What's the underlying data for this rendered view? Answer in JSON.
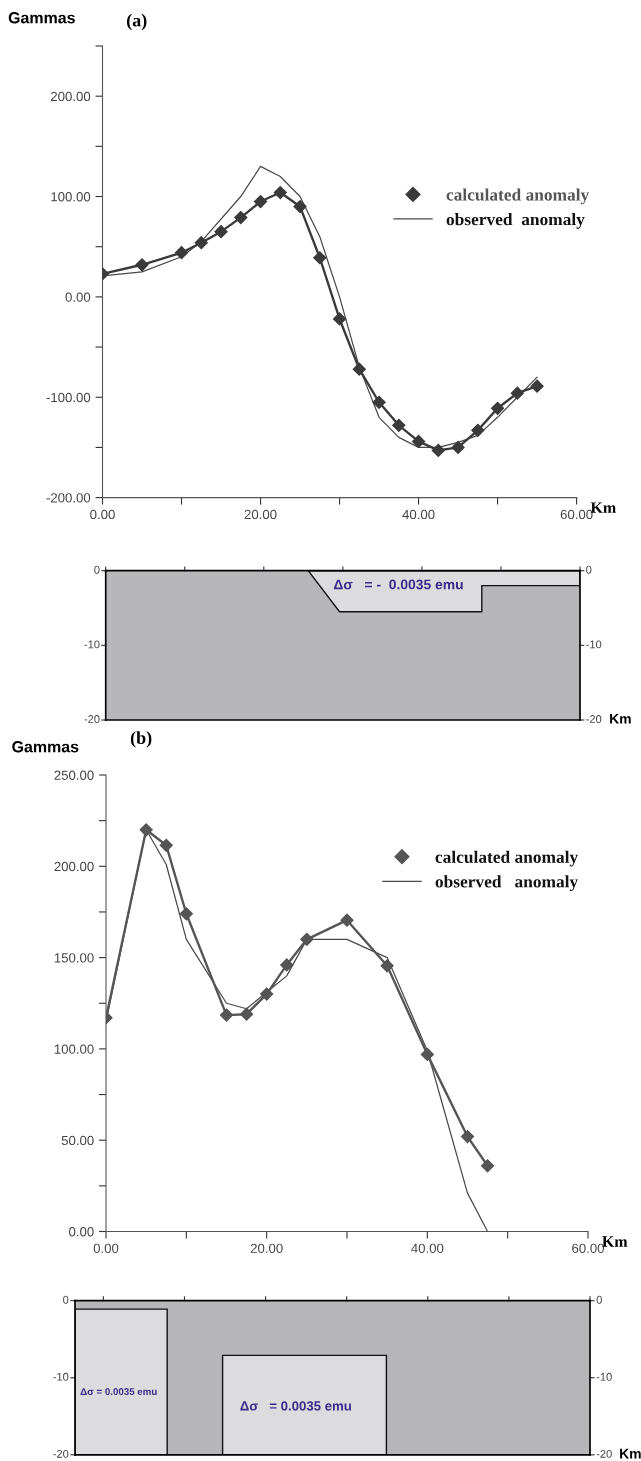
{
  "chart_data": [
    {
      "type": "line",
      "title": "(a)",
      "ylabel": "Gammas",
      "xlabel": "Km",
      "legend": "right",
      "xlim": [
        0,
        60
      ],
      "xticks": [
        {
          "value": 0,
          "label": "0.00"
        },
        {
          "value": 10,
          "label": null
        },
        {
          "value": 20,
          "label": "20.00"
        },
        {
          "value": 30,
          "label": null
        },
        {
          "value": 40,
          "label": "40.00"
        },
        {
          "value": 50,
          "label": null
        },
        {
          "value": 60,
          "label": "60.00"
        }
      ],
      "ylim": [
        -200,
        250
      ],
      "yticks": [
        {
          "value": -200,
          "label": "-200.00"
        },
        {
          "value": -150,
          "label": null
        },
        {
          "value": -100,
          "label": "-100.00"
        },
        {
          "value": -50,
          "label": null
        },
        {
          "value": 0,
          "label": "0.00"
        },
        {
          "value": 50,
          "label": null
        },
        {
          "value": 100,
          "label": "100.00"
        },
        {
          "value": 150,
          "label": null
        },
        {
          "value": 200,
          "label": "200.00"
        },
        {
          "value": 250,
          "label": null
        }
      ],
      "series": [
        {
          "name": "calculated anomaly",
          "color": "#3a3a3a",
          "marker": "diamond",
          "x": [
            0,
            5,
            10,
            12.5,
            15,
            17.5,
            20,
            22.5,
            25,
            27.5,
            30,
            32.5,
            35,
            37.5,
            40,
            42.5,
            45,
            47.5,
            50,
            52.5,
            55
          ],
          "values": [
            23,
            32,
            44,
            54,
            65,
            79,
            95,
            104,
            90,
            39,
            -22,
            -72,
            -105,
            -128,
            -144,
            -153,
            -150,
            -133,
            -111,
            -96,
            -89
          ]
        },
        {
          "name": "observed  anomaly",
          "color": "#4a4a4a",
          "marker": "none",
          "x": [
            0,
            5,
            10,
            12.5,
            17.5,
            20,
            22.5,
            25,
            27.5,
            30,
            32.5,
            35,
            37.5,
            40,
            42.5,
            45,
            47.5,
            50,
            52.5,
            55
          ],
          "values": [
            21,
            25,
            40,
            55,
            100,
            130,
            120,
            100,
            60,
            0,
            -70,
            -120,
            -140,
            -150,
            -150,
            -145,
            -138,
            -120,
            -100,
            -80
          ]
        }
      ]
    },
    {
      "type": "other",
      "xlabel": "Km",
      "annotations": [
        "Δσ   = -  0.0035 emu",
        "0",
        "-10",
        "-20",
        "0",
        "-10",
        "-20"
      ]
    },
    {
      "type": "line",
      "title": "(b)",
      "ylabel": "Gammas",
      "xlabel": "Km",
      "legend": "top right",
      "xlim": [
        0,
        60
      ],
      "xticks": [
        {
          "value": 0,
          "label": "0.00"
        },
        {
          "value": 10,
          "label": null
        },
        {
          "value": 20,
          "label": "20.00"
        },
        {
          "value": 30,
          "label": null
        },
        {
          "value": 40,
          "label": "40.00"
        },
        {
          "value": 50,
          "label": null
        },
        {
          "value": 60,
          "label": "60.00"
        }
      ],
      "ylim": [
        0,
        250
      ],
      "yticks": [
        {
          "value": 0,
          "label": "0.00"
        },
        {
          "value": 25,
          "label": null
        },
        {
          "value": 50,
          "label": "50.00"
        },
        {
          "value": 75,
          "label": null
        },
        {
          "value": 100,
          "label": "100.00"
        },
        {
          "value": 125,
          "label": null
        },
        {
          "value": 150,
          "label": "150.00"
        },
        {
          "value": 175,
          "label": null
        },
        {
          "value": 200,
          "label": "200.00"
        },
        {
          "value": 225,
          "label": null
        },
        {
          "value": 250,
          "label": "250.00"
        }
      ],
      "series": [
        {
          "name": "calculated anomaly",
          "color": "#555555",
          "marker": "diamond",
          "x": [
            0,
            5,
            7.5,
            10,
            15,
            17.5,
            20,
            22.5,
            25,
            30,
            35,
            40,
            45,
            47.5
          ],
          "values": [
            117,
            220,
            211.5,
            174,
            118.5,
            119,
            130,
            146,
            160,
            170.5,
            145.5,
            97,
            52,
            36
          ]
        },
        {
          "name": "observed   anomaly",
          "color": "#4a4a4a",
          "marker": "none",
          "x": [
            0,
            5,
            7.5,
            10,
            15,
            17.5,
            20,
            22.5,
            25,
            30,
            35,
            40,
            45,
            47.5
          ],
          "values": [
            115,
            220,
            201,
            160,
            125,
            122,
            131,
            140,
            160,
            160,
            150,
            99,
            21,
            0
          ]
        }
      ]
    },
    {
      "type": "other",
      "xlabel": "Km",
      "annotations": [
        "Δσ = 0.0035 emu",
        "Δσ   = 0.0035 emu",
        "0",
        "-10",
        "-20",
        "0",
        "-10",
        "-20"
      ]
    }
  ]
}
